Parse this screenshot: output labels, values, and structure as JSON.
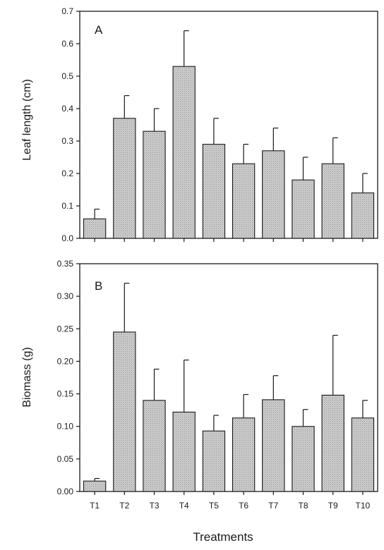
{
  "chart_data": [
    {
      "type": "bar",
      "panel_label": "A",
      "ylabel": "Leaf length (cm)",
      "xlabel": "",
      "ylim": [
        0,
        0.7
      ],
      "yticks": [
        "0.0",
        "0.1",
        "0.2",
        "0.3",
        "0.4",
        "0.5",
        "0.6",
        "0.7"
      ],
      "categories": [
        "T1",
        "T2",
        "T3",
        "T4",
        "T5",
        "T6",
        "T7",
        "T8",
        "T9",
        "T10"
      ],
      "show_category_labels": false,
      "values": [
        0.06,
        0.37,
        0.33,
        0.53,
        0.29,
        0.23,
        0.27,
        0.18,
        0.23,
        0.14
      ],
      "error_upper": [
        0.09,
        0.44,
        0.4,
        0.64,
        0.37,
        0.29,
        0.34,
        0.25,
        0.31,
        0.2
      ],
      "grid": false
    },
    {
      "type": "bar",
      "panel_label": "B",
      "ylabel": "Biomass (g)",
      "xlabel": "Treatments",
      "ylim": [
        0,
        0.35
      ],
      "yticks": [
        "0.00",
        "0.05",
        "0.10",
        "0.15",
        "0.20",
        "0.25",
        "0.30",
        "0.35"
      ],
      "categories": [
        "T1",
        "T2",
        "T3",
        "T4",
        "T5",
        "T6",
        "T7",
        "T8",
        "T9",
        "T10"
      ],
      "show_category_labels": true,
      "values": [
        0.016,
        0.245,
        0.14,
        0.122,
        0.093,
        0.113,
        0.141,
        0.1,
        0.148,
        0.113
      ],
      "error_upper": [
        0.02,
        0.32,
        0.188,
        0.202,
        0.117,
        0.149,
        0.178,
        0.126,
        0.24,
        0.14
      ],
      "grid": false
    }
  ],
  "style": {
    "bar_fill": "#c4c4c4",
    "bar_stroke": "#1a1a1a",
    "axis_color": "#1a1a1a"
  }
}
